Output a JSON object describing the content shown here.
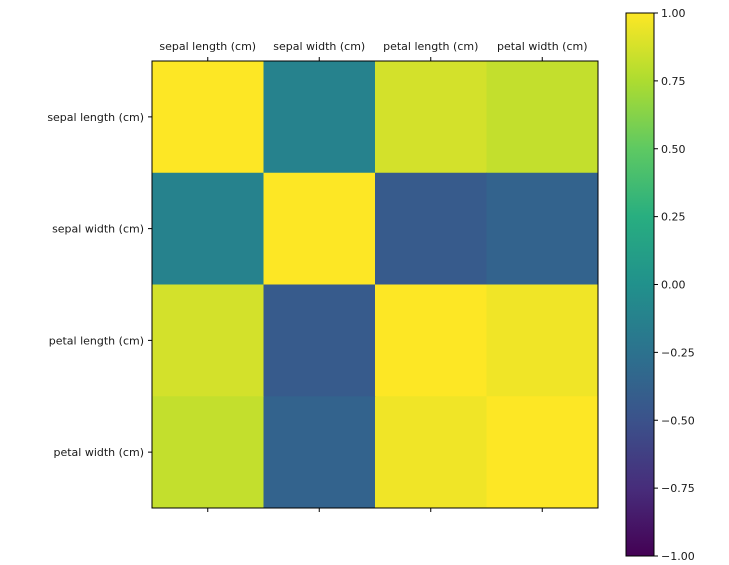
{
  "chart_data": {
    "type": "heatmap",
    "title": "",
    "xlabel": "",
    "ylabel": "",
    "x_tick_labels": [
      "sepal length (cm)",
      "sepal width (cm)",
      "petal length (cm)",
      "petal width (cm)"
    ],
    "y_tick_labels": [
      "sepal length (cm)",
      "sepal width (cm)",
      "petal length (cm)",
      "petal width (cm)"
    ],
    "x_tick_position": "top",
    "values": [
      [
        1.0,
        -0.12,
        0.87,
        0.82
      ],
      [
        -0.12,
        1.0,
        -0.43,
        -0.37
      ],
      [
        0.87,
        -0.43,
        1.0,
        0.96
      ],
      [
        0.82,
        -0.37,
        0.96,
        1.0
      ]
    ],
    "vmin": -1.0,
    "vmax": 1.0,
    "colormap": "viridis",
    "colorbar": {
      "ticks": [
        1.0,
        0.75,
        0.5,
        0.25,
        0.0,
        -0.25,
        -0.5,
        -0.75,
        -1.0
      ],
      "tick_labels": [
        "1.00",
        "0.75",
        "0.50",
        "0.25",
        "0.00",
        "−0.25",
        "−0.50",
        "−0.75",
        "−1.00"
      ],
      "placement": "right"
    },
    "grid": false
  }
}
